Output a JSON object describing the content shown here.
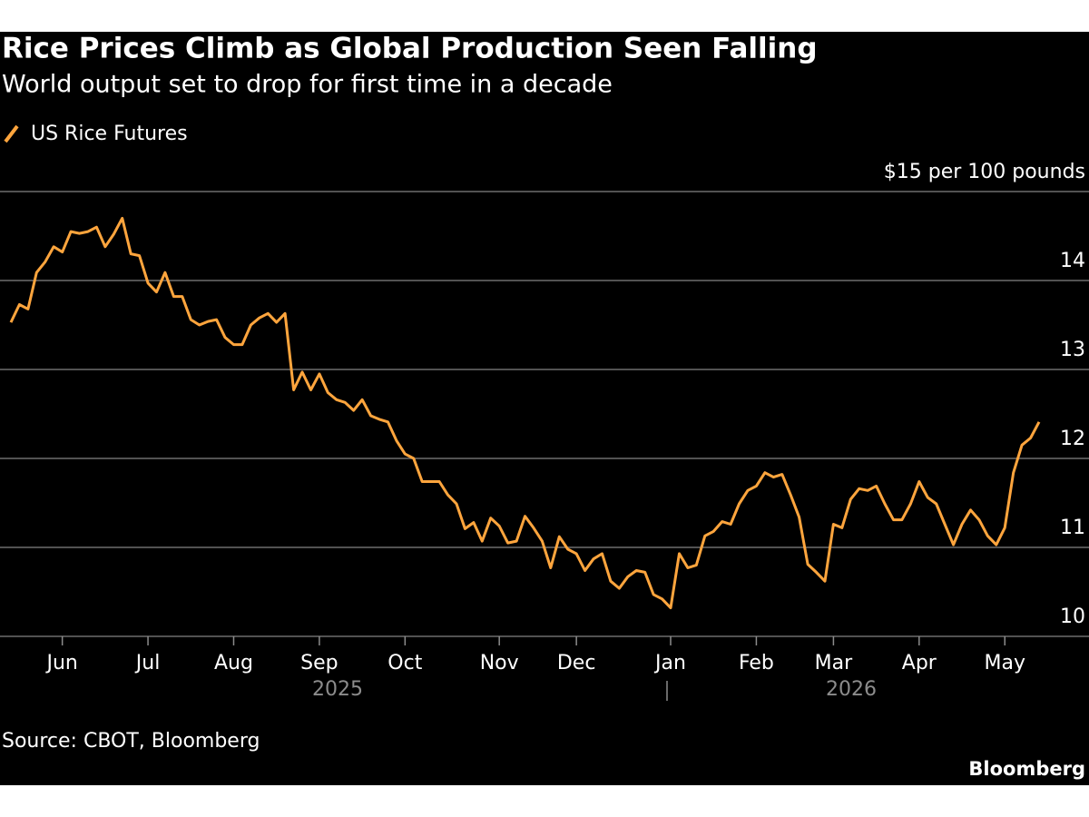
{
  "chart_data": {
    "type": "line",
    "title": "Rice Prices Climb as Global Production Seen Falling",
    "subtitle": "World output set to drop for first time in a decade",
    "source": "Source: CBOT, Bloomberg",
    "logo": "Bloomberg",
    "year_labels": [
      "2025",
      "2026"
    ],
    "categories": [
      null,
      null,
      null,
      null,
      null,
      null,
      "Jun",
      null,
      null,
      null,
      null,
      null,
      null,
      null,
      null,
      null,
      "Jul",
      null,
      null,
      null,
      null,
      null,
      null,
      null,
      null,
      null,
      "Aug",
      null,
      null,
      null,
      null,
      null,
      null,
      null,
      null,
      null,
      "Sep",
      null,
      null,
      null,
      null,
      null,
      null,
      null,
      null,
      null,
      "Oct",
      null,
      null,
      null,
      null,
      null,
      null,
      null,
      null,
      null,
      null,
      "Nov",
      null,
      null,
      null,
      null,
      null,
      null,
      null,
      null,
      "Dec",
      null,
      null,
      null,
      null,
      null,
      null,
      null,
      null,
      null,
      null,
      "Jan",
      null,
      null,
      null,
      null,
      null,
      null,
      null,
      null,
      null,
      "Feb",
      null,
      null,
      null,
      null,
      null,
      null,
      null,
      null,
      "Mar",
      null,
      null,
      null,
      null,
      null,
      null,
      null,
      null,
      null,
      "Apr",
      null,
      null,
      null,
      null,
      null,
      null,
      null,
      null,
      null,
      "May",
      null,
      null,
      null,
      null
    ],
    "series": [
      {
        "name": "US Rice Futures",
        "color": "#ffa53d",
        "values": [
          13.53,
          13.73,
          13.68,
          14.09,
          14.21,
          14.38,
          14.32,
          14.55,
          14.53,
          14.55,
          14.6,
          14.38,
          14.52,
          14.7,
          14.3,
          14.28,
          13.97,
          13.87,
          14.09,
          13.82,
          13.82,
          13.56,
          13.5,
          13.54,
          13.56,
          13.36,
          13.28,
          13.28,
          13.5,
          13.58,
          13.63,
          13.53,
          13.63,
          12.77,
          12.97,
          12.77,
          12.95,
          12.74,
          12.66,
          12.63,
          12.54,
          12.66,
          12.48,
          12.44,
          12.41,
          12.2,
          12.05,
          12.0,
          11.74,
          11.74,
          11.74,
          11.59,
          11.49,
          11.21,
          11.28,
          11.07,
          11.33,
          11.24,
          11.05,
          11.07,
          11.35,
          11.22,
          11.07,
          10.77,
          11.12,
          10.98,
          10.93,
          10.74,
          10.87,
          10.93,
          10.62,
          10.54,
          10.67,
          10.74,
          10.72,
          10.47,
          10.42,
          10.32,
          10.93,
          10.77,
          10.8,
          11.13,
          11.18,
          11.29,
          11.26,
          11.49,
          11.64,
          11.69,
          11.84,
          11.79,
          11.82,
          11.59,
          11.34,
          10.81,
          10.72,
          10.62,
          11.26,
          11.22,
          11.54,
          11.66,
          11.64,
          11.69,
          11.49,
          11.31,
          11.31,
          11.49,
          11.74,
          11.56,
          11.49,
          11.26,
          11.03,
          11.26,
          11.42,
          11.31,
          11.13,
          11.03,
          11.22,
          11.84,
          12.15,
          12.23,
          12.41
        ]
      }
    ],
    "ylim": [
      10,
      15
    ],
    "yticks": [
      10,
      11,
      12,
      13,
      14,
      {
        "value": 15,
        "label": "$15 per 100 pounds"
      }
    ],
    "grid": true
  }
}
